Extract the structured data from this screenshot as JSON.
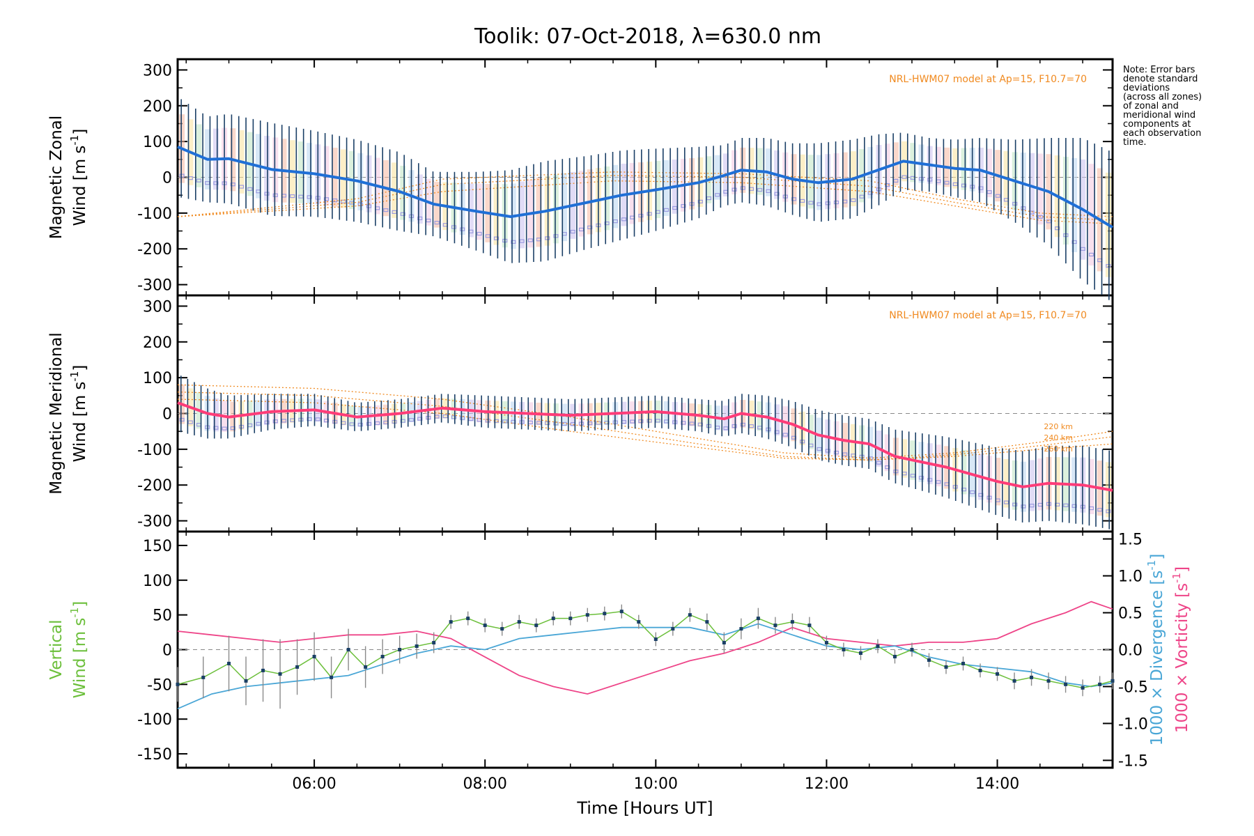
{
  "figure": {
    "title": "Toolik: 07-Oct-2018, λ=630.0 nm",
    "note_lines": [
      "Note: Error bars",
      "denote standard",
      "deviations",
      "(across all zones)",
      "of zonal and",
      "meridional wind",
      "components at",
      "each observation",
      "time."
    ],
    "model_label": "NRL-HWM07 model at Ap=15, F10.7=70",
    "altitude_labels": [
      "220 km",
      "240 km",
      "260 km"
    ],
    "xlabel": "Time [Hours UT]",
    "xticks": [
      "06:00",
      "08:00",
      "10:00",
      "12:00",
      "14:00"
    ],
    "colors": {
      "zonal": "#1f6fd6",
      "meridional": "#ff3c78",
      "vertical": "#6cbf3b",
      "divergence": "#49a6d6",
      "vorticity": "#ee4488",
      "errorbar": "#1a3f66",
      "model": "#f08a20",
      "scatter": "#9b9be0"
    }
  },
  "chart_data": [
    {
      "type": "line",
      "name": "zonal",
      "ylabel_top": "Magnetic Zonal",
      "ylabel_bottom": "Wind [m s",
      "ylabel_sup": "-1",
      "ylabel_end": "]",
      "ylim": [
        -330,
        330
      ],
      "yticks": [
        "300",
        "200",
        "100",
        "0",
        "-100",
        "-200",
        "-300"
      ],
      "ytick_values": [
        300,
        200,
        100,
        0,
        -100,
        -200,
        -300
      ],
      "x": [
        4.4,
        4.75,
        5.0,
        5.5,
        6.0,
        6.5,
        7.0,
        7.4,
        7.9,
        8.3,
        8.7,
        9.2,
        9.6,
        10.0,
        10.5,
        10.8,
        11.0,
        11.3,
        11.6,
        11.9,
        12.3,
        12.6,
        12.9,
        13.2,
        13.5,
        13.8,
        14.2,
        14.6,
        15.0,
        15.35
      ],
      "values": [
        85,
        50,
        52,
        22,
        10,
        -10,
        -40,
        -75,
        -95,
        -110,
        -95,
        -70,
        -50,
        -35,
        -15,
        5,
        20,
        15,
        -5,
        -15,
        -5,
        20,
        45,
        35,
        25,
        20,
        -10,
        -40,
        -90,
        -140
      ],
      "errors": [
        140,
        120,
        125,
        130,
        120,
        115,
        110,
        90,
        110,
        130,
        140,
        130,
        125,
        115,
        100,
        85,
        90,
        95,
        100,
        110,
        110,
        100,
        80,
        75,
        80,
        90,
        115,
        150,
        200,
        210
      ],
      "model_curves": [
        {
          "name": "model-a",
          "x": [
            4.4,
            6.5,
            7.5,
            9.5,
            11.0,
            12.5,
            13.5,
            14.5,
            15.35
          ],
          "values": [
            -110,
            -60,
            -5,
            15,
            10,
            -10,
            -60,
            -100,
            -110
          ]
        },
        {
          "name": "model-b",
          "x": [
            4.4,
            6.5,
            7.5,
            9.5,
            11.0,
            12.5,
            13.5,
            14.5,
            15.35
          ],
          "values": [
            -110,
            -70,
            -20,
            5,
            0,
            -25,
            -70,
            -110,
            -120
          ]
        },
        {
          "name": "model-c",
          "x": [
            4.4,
            6.5,
            7.5,
            9.5,
            11.0,
            12.5,
            13.5,
            14.5,
            15.35
          ],
          "values": [
            -110,
            -80,
            -40,
            -10,
            -15,
            -40,
            -80,
            -120,
            -130
          ]
        }
      ]
    },
    {
      "type": "line",
      "name": "meridional",
      "ylabel_top": "Magnetic Meridional",
      "ylabel_bottom": "Wind [m s",
      "ylabel_sup": "-1",
      "ylabel_end": "]",
      "ylim": [
        -330,
        330
      ],
      "yticks": [
        "300",
        "200",
        "100",
        "0",
        "-100",
        "-200",
        "-300"
      ],
      "ytick_values": [
        300,
        200,
        100,
        0,
        -100,
        -200,
        -300
      ],
      "x": [
        4.4,
        4.75,
        5.0,
        5.5,
        6.0,
        6.5,
        7.0,
        7.5,
        8.0,
        8.5,
        9.0,
        9.5,
        10.0,
        10.5,
        10.8,
        11.0,
        11.3,
        11.6,
        11.9,
        12.2,
        12.5,
        12.8,
        13.1,
        13.4,
        13.7,
        14.0,
        14.3,
        14.6,
        15.0,
        15.35
      ],
      "values": [
        30,
        0,
        -10,
        5,
        10,
        -10,
        0,
        15,
        5,
        0,
        -5,
        0,
        5,
        -5,
        -15,
        0,
        -10,
        -30,
        -60,
        -75,
        -85,
        -120,
        -135,
        -150,
        -170,
        -190,
        -205,
        -195,
        -200,
        -215
      ],
      "errors": [
        80,
        70,
        60,
        50,
        45,
        40,
        40,
        40,
        45,
        45,
        45,
        45,
        45,
        45,
        50,
        55,
        60,
        65,
        70,
        70,
        70,
        75,
        80,
        85,
        90,
        95,
        100,
        105,
        110,
        110
      ],
      "model_curves": [
        {
          "name": "model-a",
          "x": [
            4.4,
            6.0,
            7.5,
            9.0,
            10.5,
            11.5,
            12.5,
            13.5,
            14.5,
            15.35
          ],
          "values": [
            80,
            70,
            40,
            -10,
            -70,
            -110,
            -125,
            -110,
            -80,
            -50
          ]
        },
        {
          "name": "model-b",
          "x": [
            4.4,
            6.0,
            7.5,
            9.0,
            10.5,
            11.5,
            12.5,
            13.5,
            14.5,
            15.35
          ],
          "values": [
            60,
            50,
            20,
            -30,
            -85,
            -120,
            -130,
            -115,
            -90,
            -65
          ]
        },
        {
          "name": "model-c",
          "x": [
            4.4,
            6.0,
            7.5,
            9.0,
            10.5,
            11.5,
            12.5,
            13.5,
            14.5,
            15.35
          ],
          "values": [
            40,
            30,
            0,
            -50,
            -95,
            -125,
            -130,
            -120,
            -100,
            -85
          ]
        }
      ]
    },
    {
      "type": "line",
      "name": "vertical",
      "ylabel_top": "Vertical",
      "ylabel_bottom": "Wind [m s",
      "ylabel_sup": "-1",
      "ylabel_end": "]",
      "ylim": [
        -170,
        170
      ],
      "yticks": [
        "150",
        "100",
        "50",
        "0",
        "-50",
        "-100",
        "-150"
      ],
      "ytick_values": [
        150,
        100,
        50,
        0,
        -50,
        -100,
        -150
      ],
      "right_ylim": [
        -1.6,
        1.6
      ],
      "right_yticks": [
        "1.5",
        "1.0",
        "0.5",
        "0.0",
        "-0.5",
        "-1.0",
        "-1.5"
      ],
      "right_ytick_values": [
        1.5,
        1.0,
        0.5,
        0.0,
        -0.5,
        -1.0,
        -1.5
      ],
      "right_label_div": "1000 × Divergence [s",
      "right_label_vor": "1000 × Vorticity [s",
      "right_label_sup": "-1",
      "right_label_end": "]",
      "vertical": {
        "x": [
          4.4,
          4.7,
          5.0,
          5.2,
          5.4,
          5.6,
          5.8,
          6.0,
          6.2,
          6.4,
          6.6,
          6.8,
          7.0,
          7.2,
          7.4,
          7.6,
          7.8,
          8.0,
          8.2,
          8.4,
          8.6,
          8.8,
          9.0,
          9.2,
          9.4,
          9.6,
          9.8,
          10.0,
          10.2,
          10.4,
          10.6,
          10.8,
          11.0,
          11.2,
          11.4,
          11.6,
          11.8,
          12.0,
          12.2,
          12.4,
          12.6,
          12.8,
          13.0,
          13.2,
          13.4,
          13.6,
          13.8,
          14.0,
          14.2,
          14.4,
          14.6,
          14.8,
          15.0,
          15.2,
          15.35
        ],
        "values": [
          -50,
          -40,
          -20,
          -45,
          -30,
          -35,
          -25,
          -10,
          -40,
          0,
          -25,
          -10,
          0,
          5,
          10,
          40,
          45,
          35,
          30,
          40,
          35,
          45,
          45,
          50,
          52,
          55,
          40,
          15,
          30,
          50,
          40,
          10,
          30,
          45,
          35,
          40,
          35,
          10,
          0,
          -5,
          5,
          -10,
          0,
          -15,
          -25,
          -20,
          -30,
          -35,
          -45,
          -40,
          -45,
          -50,
          -55,
          -50,
          -45
        ],
        "errors": [
          25,
          30,
          40,
          35,
          45,
          50,
          40,
          35,
          30,
          30,
          30,
          25,
          20,
          18,
          15,
          10,
          10,
          10,
          10,
          10,
          10,
          10,
          10,
          10,
          10,
          10,
          10,
          10,
          10,
          10,
          12,
          15,
          15,
          15,
          12,
          12,
          12,
          10,
          10,
          10,
          10,
          10,
          10,
          10,
          10,
          10,
          10,
          10,
          12,
          12,
          12,
          12,
          12,
          12,
          12
        ]
      },
      "divergence": {
        "x": [
          4.4,
          4.8,
          5.2,
          5.6,
          6.0,
          6.4,
          6.8,
          7.2,
          7.6,
          8.0,
          8.4,
          8.8,
          9.2,
          9.6,
          10.0,
          10.4,
          10.8,
          11.2,
          11.6,
          12.0,
          12.4,
          12.8,
          13.2,
          13.6,
          14.0,
          14.4,
          14.8,
          15.1,
          15.35
        ],
        "values": [
          -0.8,
          -0.6,
          -0.5,
          -0.45,
          -0.4,
          -0.35,
          -0.2,
          -0.05,
          0.05,
          0.0,
          0.15,
          0.2,
          0.25,
          0.3,
          0.3,
          0.3,
          0.2,
          0.35,
          0.2,
          0.05,
          0.0,
          0.05,
          -0.1,
          -0.2,
          -0.25,
          -0.3,
          -0.45,
          -0.5,
          -0.45
        ]
      },
      "vorticity": {
        "x": [
          4.4,
          4.8,
          5.2,
          5.6,
          6.0,
          6.4,
          6.8,
          7.2,
          7.6,
          8.0,
          8.4,
          8.8,
          9.2,
          9.6,
          10.0,
          10.4,
          10.8,
          11.2,
          11.6,
          12.0,
          12.4,
          12.8,
          13.2,
          13.6,
          14.0,
          14.4,
          14.8,
          15.1,
          15.35
        ],
        "values": [
          0.25,
          0.2,
          0.15,
          0.1,
          0.15,
          0.2,
          0.2,
          0.25,
          0.15,
          -0.1,
          -0.35,
          -0.5,
          -0.6,
          -0.45,
          -0.3,
          -0.15,
          -0.05,
          0.1,
          0.3,
          0.15,
          0.1,
          0.05,
          0.1,
          0.1,
          0.15,
          0.35,
          0.5,
          0.65,
          0.55
        ]
      }
    }
  ],
  "xaxis": {
    "xlim": [
      4.4,
      15.35
    ],
    "tick_values": [
      6,
      8,
      10,
      12,
      14
    ]
  }
}
